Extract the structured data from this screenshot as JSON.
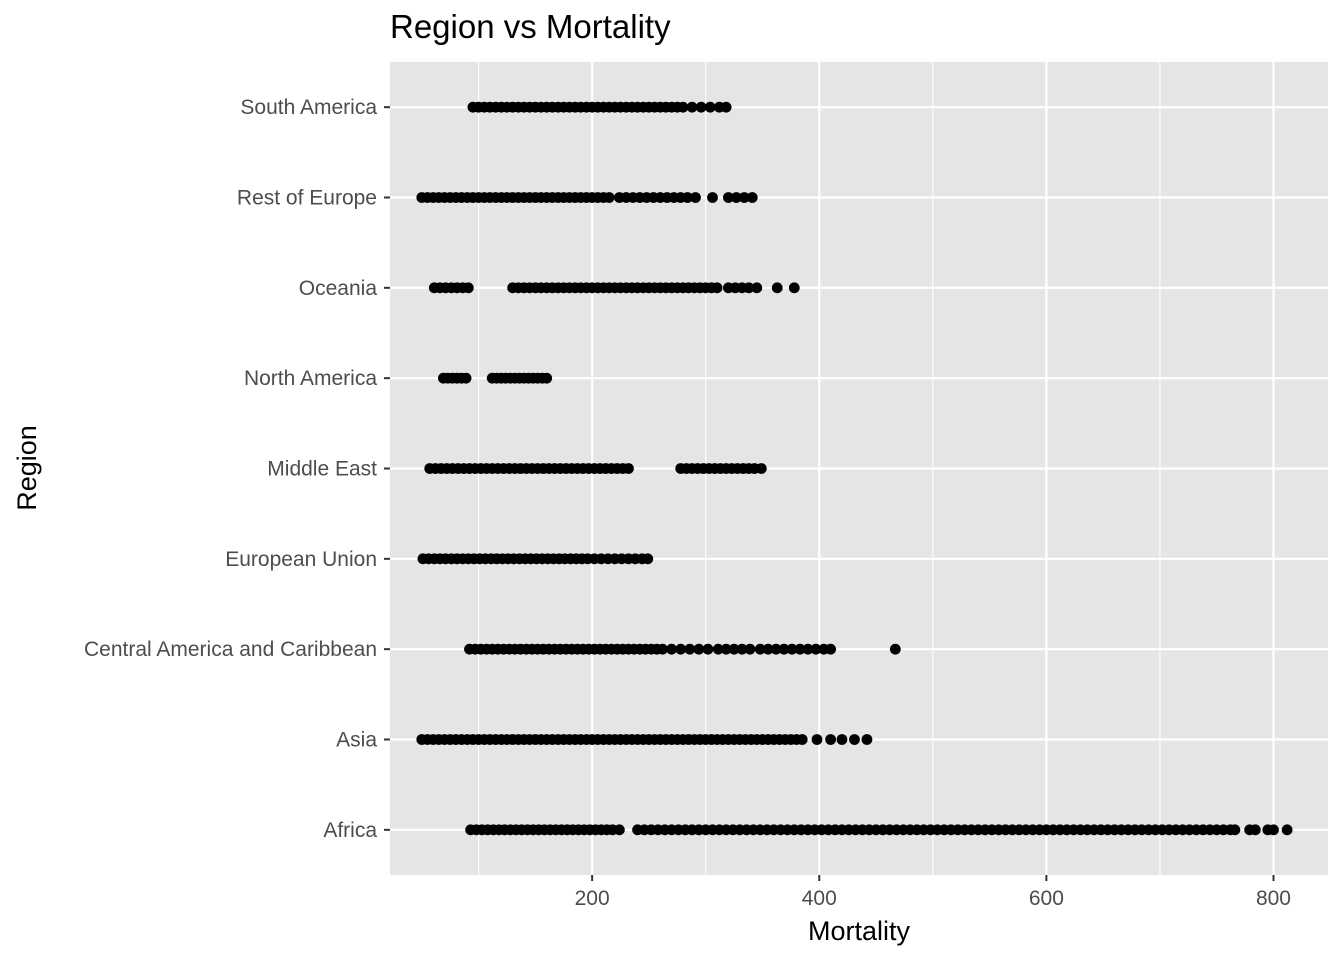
{
  "chart_data": {
    "type": "scatter",
    "title": "Region vs Mortality",
    "xlabel": "Mortality",
    "ylabel": "Region",
    "xlim": [
      22,
      848
    ],
    "x_ticks": [
      200,
      400,
      600,
      800
    ],
    "x_minor_ticks": [
      100,
      300,
      500,
      700
    ],
    "grid": true,
    "colors": {
      "panel": "#e5e5e5",
      "grid": "#ffffff",
      "point": "#000000",
      "tick_label": "#4d4d4d"
    },
    "categories": [
      "Africa",
      "Asia",
      "Central America and Caribbean",
      "European Union",
      "Middle East",
      "North America",
      "Oceania",
      "Rest of Europe",
      "South America"
    ],
    "series": [
      {
        "category": "South America",
        "x": [
          95,
          100,
          105,
          110,
          115,
          120,
          125,
          130,
          135,
          140,
          145,
          150,
          155,
          160,
          165,
          170,
          175,
          180,
          185,
          190,
          195,
          200,
          205,
          210,
          215,
          220,
          225,
          230,
          235,
          240,
          245,
          250,
          255,
          260,
          265,
          270,
          275,
          280,
          288,
          296,
          304,
          312,
          318
        ]
      },
      {
        "category": "Rest of Europe",
        "x": [
          50,
          55,
          60,
          65,
          70,
          75,
          80,
          85,
          90,
          95,
          100,
          105,
          110,
          115,
          120,
          125,
          130,
          135,
          140,
          145,
          150,
          155,
          160,
          165,
          170,
          175,
          180,
          185,
          190,
          195,
          200,
          205,
          210,
          215,
          224,
          230,
          236,
          242,
          248,
          254,
          260,
          266,
          272,
          278,
          284,
          291,
          306,
          320,
          327,
          334,
          341
        ]
      },
      {
        "category": "Oceania",
        "x": [
          61,
          66,
          71,
          76,
          81,
          86,
          91,
          130,
          135,
          140,
          145,
          150,
          155,
          160,
          165,
          170,
          175,
          180,
          185,
          190,
          195,
          200,
          205,
          210,
          215,
          220,
          225,
          230,
          235,
          240,
          245,
          250,
          255,
          260,
          265,
          270,
          275,
          280,
          285,
          290,
          295,
          300,
          305,
          310,
          320,
          326,
          332,
          338,
          345,
          363,
          378
        ]
      },
      {
        "category": "North America",
        "x": [
          69,
          73,
          77,
          81,
          85,
          89,
          112,
          116,
          120,
          124,
          128,
          132,
          136,
          140,
          144,
          148,
          152,
          156,
          160
        ]
      },
      {
        "category": "Middle East",
        "x": [
          57,
          62,
          67,
          72,
          77,
          82,
          87,
          92,
          97,
          102,
          107,
          112,
          117,
          122,
          127,
          132,
          137,
          142,
          147,
          152,
          157,
          162,
          167,
          172,
          177,
          182,
          187,
          192,
          197,
          202,
          207,
          212,
          217,
          222,
          227,
          232,
          278,
          283,
          288,
          293,
          298,
          303,
          308,
          313,
          318,
          323,
          328,
          333,
          338,
          343,
          349
        ]
      },
      {
        "category": "European Union",
        "x": [
          51,
          56,
          61,
          66,
          71,
          76,
          81,
          86,
          91,
          96,
          101,
          106,
          111,
          116,
          121,
          126,
          131,
          136,
          141,
          146,
          151,
          156,
          161,
          166,
          171,
          176,
          181,
          186,
          191,
          196,
          202,
          208,
          214,
          220,
          226,
          232,
          238,
          244,
          249
        ]
      },
      {
        "category": "Central America and Caribbean",
        "x": [
          92,
          97,
          102,
          107,
          112,
          117,
          122,
          127,
          132,
          137,
          142,
          147,
          152,
          157,
          162,
          167,
          172,
          177,
          182,
          187,
          192,
          197,
          202,
          207,
          212,
          217,
          222,
          227,
          232,
          237,
          242,
          247,
          252,
          257,
          262,
          270,
          278,
          286,
          294,
          302,
          311,
          318,
          325,
          332,
          339,
          348,
          355,
          362,
          369,
          376,
          383,
          390,
          397,
          404,
          410,
          467
        ]
      },
      {
        "category": "Asia",
        "x": [
          50,
          55,
          60,
          65,
          70,
          75,
          80,
          85,
          90,
          95,
          100,
          105,
          110,
          115,
          120,
          125,
          130,
          135,
          140,
          145,
          150,
          155,
          160,
          165,
          170,
          175,
          180,
          185,
          190,
          195,
          200,
          205,
          210,
          215,
          220,
          225,
          230,
          235,
          240,
          245,
          250,
          255,
          260,
          265,
          270,
          275,
          280,
          285,
          290,
          295,
          300,
          305,
          310,
          315,
          320,
          325,
          330,
          335,
          340,
          345,
          350,
          355,
          360,
          365,
          370,
          375,
          380,
          385,
          398,
          410,
          420,
          431,
          442
        ]
      },
      {
        "category": "Africa",
        "x": [
          93,
          98,
          103,
          108,
          113,
          118,
          123,
          128,
          133,
          138,
          143,
          148,
          153,
          158,
          163,
          168,
          173,
          178,
          183,
          188,
          193,
          198,
          203,
          208,
          213,
          218,
          224,
          240,
          246,
          252,
          258,
          264,
          270,
          276,
          282,
          288,
          294,
          300,
          306,
          312,
          318,
          324,
          330,
          336,
          342,
          348,
          354,
          360,
          366,
          372,
          378,
          384,
          390,
          396,
          402,
          408,
          414,
          420,
          426,
          432,
          438,
          444,
          450,
          456,
          462,
          468,
          474,
          480,
          486,
          492,
          498,
          504,
          510,
          516,
          522,
          528,
          534,
          540,
          546,
          552,
          558,
          564,
          570,
          576,
          582,
          588,
          594,
          600,
          606,
          612,
          618,
          624,
          630,
          636,
          642,
          648,
          654,
          660,
          666,
          672,
          678,
          684,
          690,
          696,
          702,
          708,
          714,
          720,
          726,
          732,
          738,
          744,
          750,
          756,
          762,
          766,
          779,
          784,
          795,
          800,
          812
        ]
      }
    ]
  }
}
